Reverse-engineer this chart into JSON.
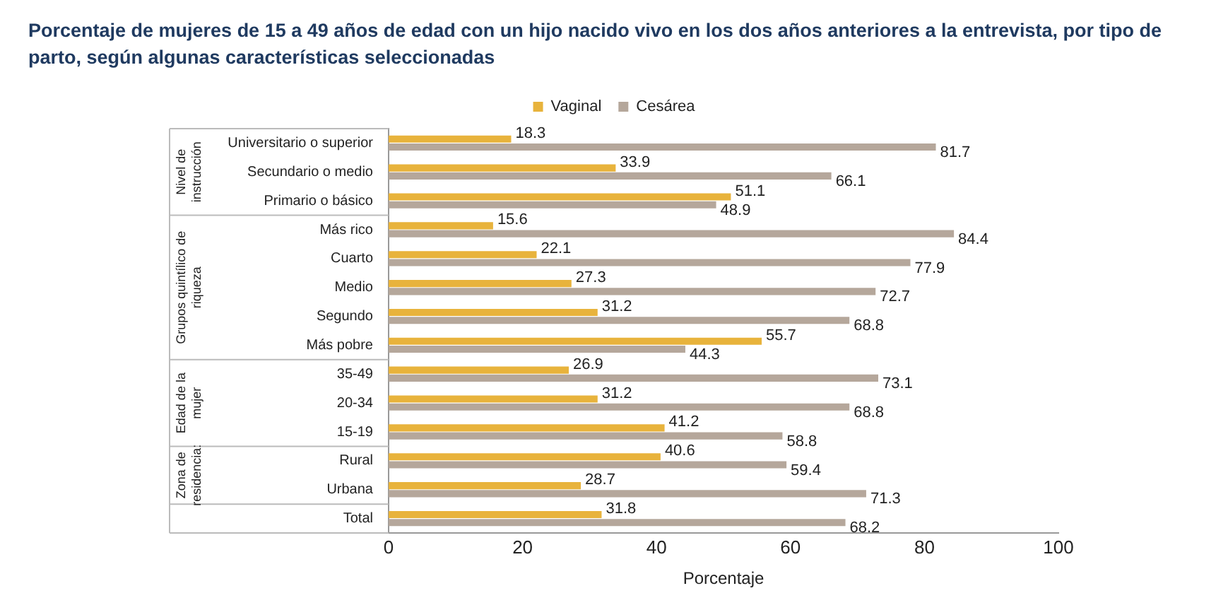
{
  "chart_data": {
    "type": "bar",
    "orientation": "horizontal",
    "title": "Porcentaje de mujeres de 15 a 49 años de edad con un hijo nacido vivo en los dos años anteriores a la entrevista,  por tipo de parto, según algunas características seleccionadas",
    "xlabel": "Porcentaje",
    "categories": [
      "Universitario o superior",
      "Secundario o medio",
      "Primario o básico",
      "Más rico",
      "Cuarto",
      "Medio",
      "Segundo",
      "Más pobre",
      "35-49",
      "20-34",
      "15-19",
      "Rural",
      "Urbana",
      "Total"
    ],
    "series": [
      {
        "name": "Vaginal",
        "color": "#e8b33c",
        "values": [
          18.3,
          33.9,
          51.1,
          15.6,
          22.1,
          27.3,
          31.2,
          55.7,
          26.9,
          31.2,
          41.2,
          40.6,
          28.7,
          31.8
        ]
      },
      {
        "name": "Cesárea",
        "color": "#b5a79b",
        "values": [
          81.7,
          66.1,
          48.9,
          84.4,
          77.9,
          72.7,
          68.8,
          44.3,
          73.1,
          68.8,
          58.8,
          59.4,
          71.3,
          68.2
        ]
      }
    ],
    "xlim": [
      0,
      100
    ],
    "xticks": [
      0,
      20,
      40,
      60,
      80,
      100
    ],
    "grid": false,
    "legend": "top",
    "data_labels": true,
    "annotations": [
      "Nivel de instrucción",
      "Grupos quintílico de riqueza",
      "Edad de la mujer",
      "Zona de residencia:"
    ]
  }
}
